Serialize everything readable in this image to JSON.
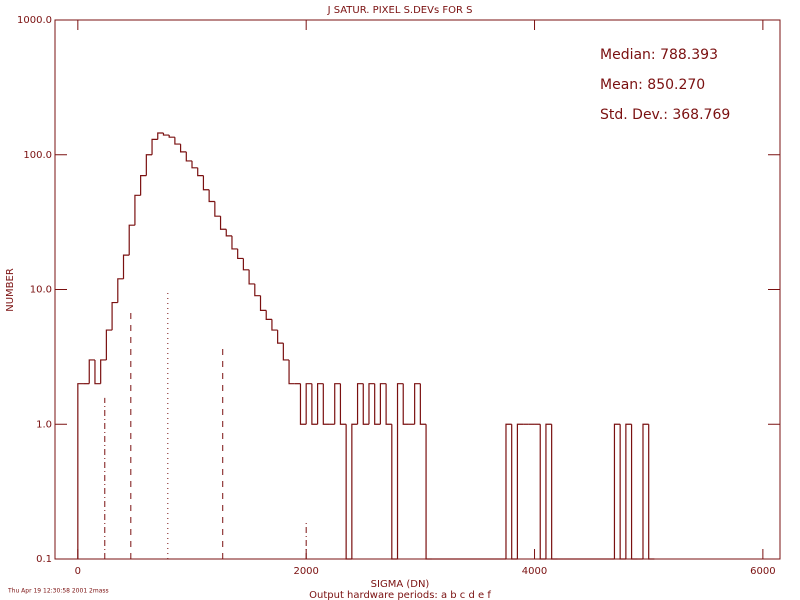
{
  "chart_data": {
    "type": "histogram",
    "title": "J SATUR. PIXEL S.DEVs FOR S",
    "x_label": "SIGMA (DN)",
    "y_label": "NUMBER",
    "subtitle": "Output hardware periods: a b c d e f",
    "footer": "Thu Apr 19 12:30:58 2001 2mass",
    "annotations": [
      "Median:  788.393",
      "Mean:  850.270",
      "Std. Dev.:  368.769"
    ],
    "color": "#7a1010",
    "log_y": true,
    "xlim": [
      -200,
      6150
    ],
    "ylim": [
      0.1,
      1000
    ],
    "xticks": [
      0,
      2000,
      4000,
      6000
    ],
    "yticks": [
      {
        "value": 1000,
        "label": "1000.0"
      },
      {
        "value": 100,
        "label": "100.0"
      },
      {
        "value": 10,
        "label": "10.0"
      },
      {
        "value": 1,
        "label": "1.0"
      },
      {
        "value": 0.1,
        "label": "0.1"
      }
    ],
    "bins": [
      0,
      50,
      100,
      150,
      200,
      250,
      300,
      350,
      400,
      450,
      500,
      550,
      600,
      650,
      700,
      750,
      800,
      850,
      900,
      950,
      1000,
      1050,
      1100,
      1150,
      1200,
      1250,
      1300,
      1350,
      1400,
      1450,
      1500,
      1550,
      1600,
      1650,
      1700,
      1750,
      1800,
      1850,
      1900,
      1950,
      2000,
      2050,
      2100,
      2150,
      2200,
      2250,
      2300,
      2350,
      2400,
      2450,
      2500,
      2550,
      2600,
      2650,
      2700,
      2750,
      2800,
      2850,
      2900,
      2950,
      3000,
      3050,
      3100,
      3150,
      3200,
      3250,
      3300,
      3350,
      3400,
      3450,
      3500,
      3550,
      3600,
      3650,
      3700,
      3750,
      3800,
      3850,
      3900,
      3950,
      4000,
      4050,
      4100,
      4150,
      4200,
      4250,
      4300,
      4350,
      4400,
      4450,
      4500,
      4550,
      4600,
      4650,
      4700,
      4750,
      4800,
      4850,
      4900,
      4950,
      5000,
      5050
    ],
    "values": [
      2,
      2,
      3,
      2,
      3,
      5,
      8,
      12,
      18,
      30,
      50,
      70,
      100,
      130,
      145,
      140,
      135,
      120,
      105,
      90,
      80,
      70,
      55,
      45,
      35,
      28,
      25,
      20,
      17,
      14,
      11,
      9,
      7,
      6,
      5,
      4,
      3,
      2,
      2,
      1,
      2,
      1,
      2,
      1,
      1,
      2,
      1,
      0,
      1,
      2,
      1,
      2,
      1,
      2,
      1,
      0,
      2,
      1,
      1,
      2,
      1,
      0,
      0,
      0,
      0,
      0,
      0,
      0,
      0,
      0,
      0,
      0,
      0,
      0,
      0,
      1,
      0,
      1,
      1,
      1,
      1,
      0,
      1,
      0,
      0,
      0,
      0,
      0,
      0,
      0,
      0,
      0,
      0,
      0,
      1,
      0,
      1,
      0,
      0,
      1,
      0
    ],
    "markers": [
      {
        "x": 236,
        "height": 1.57,
        "style": "dashdot"
      },
      {
        "x": 464,
        "height": 6.7,
        "style": "dashed"
      },
      {
        "x": 788,
        "height": 10,
        "style": "dotted"
      },
      {
        "x": 1269,
        "height": 3.7,
        "style": "dashed"
      },
      {
        "x": 2000,
        "height": 0.19,
        "style": "dashdot"
      }
    ]
  }
}
